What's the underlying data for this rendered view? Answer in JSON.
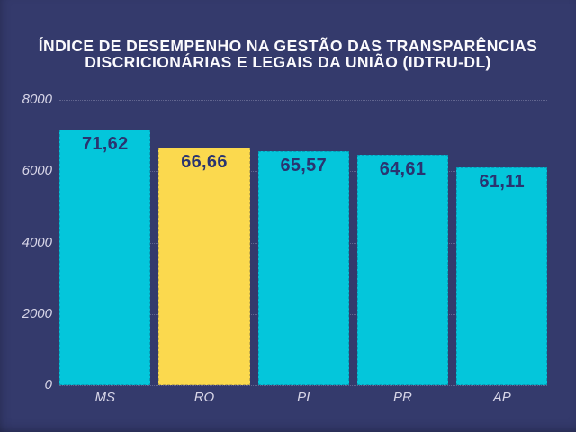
{
  "chart_data": {
    "type": "bar",
    "title_line1": "ÍNDICE DE DESEMPENHO NA GESTÃO DAS TRANSPARÊNCIAS",
    "title_line2": "DISCRICIONÁRIAS E LEGAIS DA UNIÃO (IDTRU-DL)",
    "categories": [
      "MS",
      "RO",
      "PI",
      "PR",
      "AP"
    ],
    "values": [
      71.62,
      66.66,
      65.57,
      64.61,
      61.11
    ],
    "value_labels": [
      "71,62",
      "66,66",
      "65,57",
      "64,61",
      "61,11"
    ],
    "axis_values": [
      7162,
      6666,
      6557,
      6461,
      6111
    ],
    "ylim": [
      0,
      8000
    ],
    "yticks": [
      8000,
      6000,
      4000,
      2000,
      0
    ],
    "xlabel": "",
    "ylabel": "",
    "legend": "none",
    "grid": "horizontal-dotted",
    "highlighted_category": "RO",
    "bar_colors": [
      "#04c6db",
      "#fbd94e",
      "#04c6db",
      "#04c6db",
      "#04c6db"
    ],
    "colors": {
      "background": "#343a6c",
      "bar_default": "#04c6db",
      "bar_highlight": "#fbd94e",
      "value_label_text": "#2a3470",
      "axis_text": "#d8d6e8",
      "title_text": "#fbfafd",
      "gridline": "rgba(216,214,232,0.28)"
    }
  }
}
